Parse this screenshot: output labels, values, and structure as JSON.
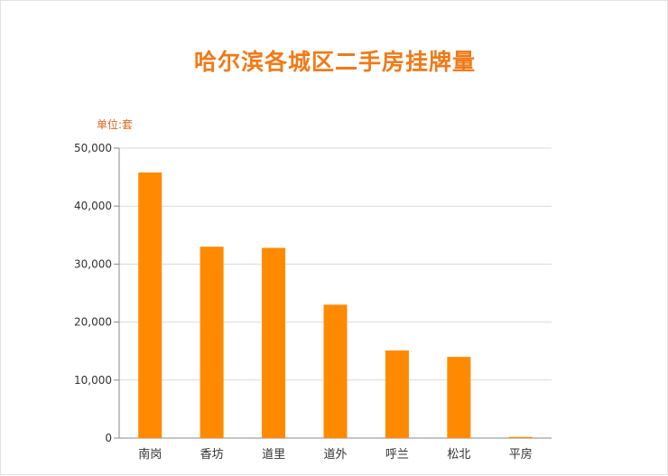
{
  "chart_data": {
    "type": "bar",
    "title": "哈尔滨各城区二手房挂牌量",
    "unit_label": "单位:套",
    "categories": [
      "南岗",
      "香坊",
      "道里",
      "道外",
      "呼兰",
      "松北",
      "平房"
    ],
    "values": [
      45800,
      33000,
      32800,
      23000,
      15100,
      14000,
      200
    ],
    "yticks": [
      "0",
      "10,000",
      "20,000",
      "30,000",
      "40,000",
      "50,000"
    ],
    "ylim": [
      0,
      50000
    ],
    "grid": true,
    "colors": {
      "bar": "#ff8a00",
      "title": "#f07a18",
      "grid": "#d9d9d9"
    }
  }
}
